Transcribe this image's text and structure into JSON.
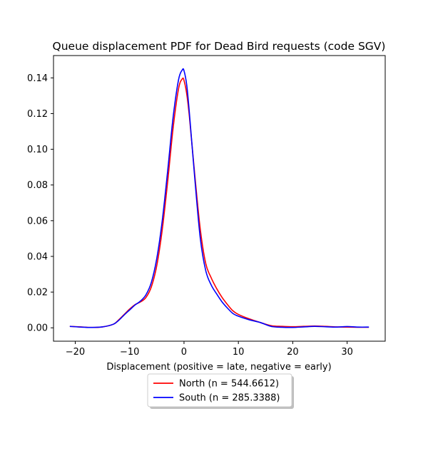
{
  "chart_data": {
    "type": "line",
    "title": "Queue displacement PDF for Dead Bird  requests (code SGV)",
    "xlabel": "Displacement (positive = late, negative = early)",
    "ylabel": "",
    "xlim": [
      -24,
      37
    ],
    "ylim": [
      -0.0075,
      0.1525
    ],
    "xticks": [
      -20,
      -10,
      0,
      10,
      20,
      30
    ],
    "xtick_labels": [
      "−20",
      "−10",
      "0",
      "10",
      "20",
      "30"
    ],
    "yticks": [
      0,
      0.02,
      0.04,
      0.06,
      0.08,
      0.1,
      0.12,
      0.14
    ],
    "ytick_labels": [
      "0.00",
      "0.02",
      "0.04",
      "0.06",
      "0.08",
      "0.10",
      "0.12",
      "0.14"
    ],
    "grid": false,
    "legend_position": "below-center",
    "series": [
      {
        "name": "North (n = 544.6612)",
        "color": "#ff0000",
        "x": [
          -21,
          -19,
          -17,
          -15,
          -13,
          -12,
          -11,
          -10,
          -9,
          -8,
          -7,
          -6,
          -5,
          -4,
          -3,
          -2,
          -1,
          -0.3,
          0,
          0.5,
          1,
          2,
          3,
          4,
          5,
          6,
          7,
          8,
          9,
          10,
          12,
          14,
          16,
          18,
          20,
          22,
          24,
          26,
          28,
          30,
          32,
          34
        ],
        "y": [
          0.0008,
          0.0005,
          0.0002,
          0.0005,
          0.002,
          0.0045,
          0.0075,
          0.0105,
          0.013,
          0.0145,
          0.017,
          0.023,
          0.035,
          0.055,
          0.082,
          0.112,
          0.134,
          0.1395,
          0.1385,
          0.131,
          0.118,
          0.085,
          0.055,
          0.036,
          0.028,
          0.022,
          0.017,
          0.013,
          0.0095,
          0.0075,
          0.005,
          0.003,
          0.0012,
          0.0008,
          0.0006,
          0.0008,
          0.001,
          0.0008,
          0.0005,
          0.0004,
          0.0003,
          0.0003
        ]
      },
      {
        "name": "South (n = 285.3388)",
        "color": "#0000ff",
        "x": [
          -21,
          -19,
          -17,
          -15,
          -13,
          -12,
          -11,
          -10,
          -9,
          -8,
          -7,
          -6,
          -5,
          -4,
          -3,
          -2,
          -1,
          -0.3,
          0,
          0.5,
          1,
          2,
          3,
          4,
          5,
          6,
          7,
          8,
          9,
          10,
          12,
          14,
          16,
          18,
          20,
          22,
          24,
          26,
          28,
          30,
          32,
          34
        ],
        "y": [
          0.0008,
          0.0004,
          0.0002,
          0.0005,
          0.002,
          0.0042,
          0.0072,
          0.01,
          0.0128,
          0.015,
          0.0185,
          0.0255,
          0.039,
          0.06,
          0.088,
          0.118,
          0.139,
          0.1445,
          0.144,
          0.136,
          0.12,
          0.083,
          0.05,
          0.032,
          0.024,
          0.019,
          0.0145,
          0.011,
          0.008,
          0.0065,
          0.0045,
          0.003,
          0.0008,
          0.0003,
          0.0002,
          0.0005,
          0.0008,
          0.0006,
          0.0004,
          0.0007,
          0.0004,
          0.0004
        ]
      }
    ]
  }
}
